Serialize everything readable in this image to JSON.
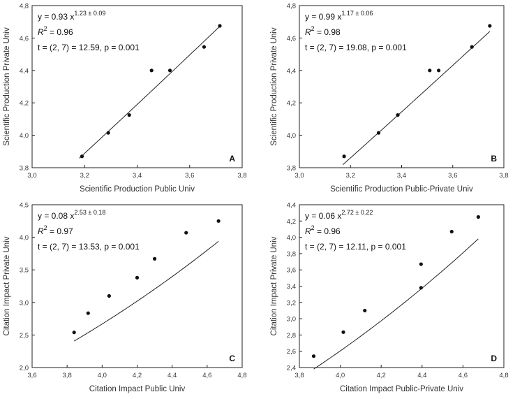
{
  "chart_data": [
    {
      "panel": "A",
      "type": "scatter",
      "xlabel": "Scientific Production Public Univ",
      "ylabel": "Scientific Production Private Univ",
      "xlim": [
        3.0,
        3.8
      ],
      "ylim": [
        3.8,
        4.8
      ],
      "xticks": [
        "3,0",
        "3,2",
        "3,4",
        "3,6",
        "3,8"
      ],
      "yticks": [
        "3,8",
        "4,0",
        "4,2",
        "4,4",
        "4,6",
        "4,8"
      ],
      "x": [
        3.19,
        3.29,
        3.37,
        3.455,
        3.525,
        3.655,
        3.715
      ],
      "y": [
        3.87,
        4.015,
        4.125,
        4.4,
        4.4,
        4.545,
        4.675
      ],
      "fit": {
        "a": 0.93,
        "b": 1.23,
        "xrange": [
          3.18,
          3.715
        ]
      },
      "annotations": {
        "eq_prefix": "y = 0.93 x",
        "eq_exp": "1.23 ± 0.09",
        "r2_prefix": "R",
        "r2_sup": "2",
        "r2_value": " = 0.96",
        "t_text": "t = (2, 7) = 12.59, p = 0.001"
      }
    },
    {
      "panel": "B",
      "type": "scatter",
      "xlabel": "Scientific Production Public-Private Univ",
      "ylabel": "Scientific Production Private Univ",
      "xlim": [
        3.0,
        3.8
      ],
      "ylim": [
        3.8,
        4.8
      ],
      "xticks": [
        "3,0",
        "3,2",
        "3,4",
        "3,6",
        "3,8"
      ],
      "yticks": [
        "3,8",
        "4,0",
        "4,2",
        "4,4",
        "4,6",
        "4,8"
      ],
      "x": [
        3.175,
        3.31,
        3.385,
        3.51,
        3.545,
        3.675,
        3.745
      ],
      "y": [
        3.87,
        4.015,
        4.125,
        4.4,
        4.4,
        4.545,
        4.675
      ],
      "fit": {
        "a": 0.99,
        "b": 1.17,
        "xrange": [
          3.17,
          3.745
        ]
      },
      "annotations": {
        "eq_prefix": "y = 0.99 x",
        "eq_exp": "1.17 ± 0.06",
        "r2_prefix": "R",
        "r2_sup": "2",
        "r2_value": " = 0.98",
        "t_text": "t = (2, 7) = 19.08, p = 0.001"
      }
    },
    {
      "panel": "C",
      "type": "scatter",
      "xlabel": "Citation Impact Public Univ",
      "ylabel": "Citation Impact Private Univ",
      "xlim": [
        3.6,
        4.8
      ],
      "ylim": [
        2.0,
        4.5
      ],
      "xticks": [
        "3,6",
        "3,8",
        "4,0",
        "4,2",
        "4,4",
        "4,6",
        "4,8"
      ],
      "yticks": [
        "2,0",
        "2,5",
        "3,0",
        "3,5",
        "4,0",
        "4,5"
      ],
      "x": [
        3.84,
        3.92,
        4.04,
        4.2,
        4.3,
        4.48,
        4.665
      ],
      "y": [
        2.54,
        2.835,
        3.1,
        3.38,
        3.67,
        4.07,
        4.25
      ],
      "fit": {
        "a": 0.08,
        "b": 2.53,
        "xrange": [
          3.84,
          4.665
        ]
      },
      "annotations": {
        "eq_prefix": "y = 0.08 x",
        "eq_exp": "2.53 ± 0.18",
        "r2_prefix": "R",
        "r2_sup": "2",
        "r2_value": " = 0.97",
        "t_text": "t = (2, 7) = 13.53, p = 0.001"
      }
    },
    {
      "panel": "D",
      "type": "scatter",
      "xlabel": "Citation Impact Public-Private Univ",
      "ylabel": "Citation Impact Private Univ",
      "xlim": [
        3.8,
        4.8
      ],
      "ylim": [
        2.4,
        4.4
      ],
      "xticks": [
        "3,8",
        "4,0",
        "4,2",
        "4,4",
        "4,6",
        "4,8"
      ],
      "yticks": [
        "2,4",
        "2,6",
        "2,8",
        "3,0",
        "3,2",
        "3,4",
        "3,6",
        "3,8",
        "4,0",
        "4,2",
        "4,4"
      ],
      "x": [
        3.87,
        4.015,
        4.12,
        4.395,
        4.395,
        4.545,
        4.675
      ],
      "y": [
        2.54,
        2.835,
        3.1,
        3.67,
        3.38,
        4.07,
        4.25
      ],
      "fit": {
        "a": 0.06,
        "b": 2.72,
        "xrange": [
          3.87,
          4.675
        ]
      },
      "annotations": {
        "eq_prefix": "y = 0.06 x",
        "eq_exp": "2.72 ± 0.22",
        "r2_prefix": "R",
        "r2_sup": "2",
        "r2_value": " = 0.96",
        "t_text": "t = (2, 7) = 12.11, p = 0.001"
      }
    }
  ]
}
